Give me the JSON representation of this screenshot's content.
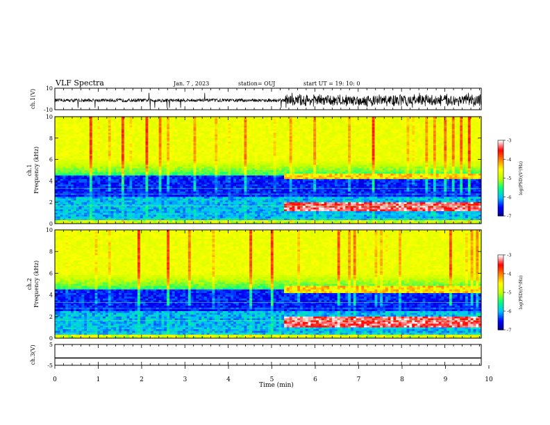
{
  "header": {
    "title": "VLF Spectra",
    "date": "Jan. 7 , 2023",
    "station": "station= OUJ",
    "start": "start UT =  19: 10: 0"
  },
  "chart_data": [
    {
      "type": "line",
      "panel": "ch1-waveform",
      "ylabel": "ch.1(V)",
      "ylim": [
        -10,
        10
      ],
      "yticks": [
        "10",
        "-10"
      ],
      "xlim": [
        0,
        10
      ],
      "series": [
        {
          "segment": "0-5.4 min",
          "amplitude_v": 1.5
        },
        {
          "segment": "5.4-10 min",
          "amplitude_v": 6
        }
      ]
    },
    {
      "type": "heatmap",
      "panel": "ch1-spectrogram",
      "ylabel": "ch.1\nFrequency (kHz)",
      "ylim": [
        0,
        10
      ],
      "yticks": [
        "0",
        "2",
        "4",
        "6",
        "8",
        "10"
      ],
      "xlim": [
        0,
        10
      ],
      "colorbar": {
        "label": "log(PSD)(V²/Hz)",
        "ticks": [
          "-3",
          "-4",
          "-5",
          "-6",
          "-7"
        ],
        "range": [
          -7,
          -3
        ]
      },
      "features": [
        {
          "start_min": 5.4,
          "freq_khz": [
            1.2,
            2.0
          ],
          "level": "high"
        },
        {
          "start_min": 5.4,
          "freq_khz": [
            4.2,
            4.6
          ],
          "level": "medium"
        }
      ]
    },
    {
      "type": "heatmap",
      "panel": "ch2-spectrogram",
      "ylabel": "ch.2\nFrequency (kHz)",
      "ylim": [
        0,
        10
      ],
      "yticks": [
        "0",
        "2",
        "4",
        "6",
        "8",
        "10"
      ],
      "xlim": [
        0,
        10
      ],
      "colorbar": {
        "label": "log(PSD)(V²/Hz)",
        "ticks": [
          "-3",
          "-4",
          "-5",
          "-6",
          "-7"
        ],
        "range": [
          -7,
          -3
        ]
      },
      "features": [
        {
          "start_min": 5.4,
          "freq_khz": [
            1.0,
            2.0
          ],
          "level": "high"
        },
        {
          "start_min": 5.4,
          "freq_khz": [
            4.2,
            4.8
          ],
          "level": "medium"
        }
      ]
    },
    {
      "type": "line",
      "panel": "ch3-waveform",
      "ylabel": "ch.3(V)",
      "ylim": [
        -5,
        5
      ],
      "yticks": [
        "5",
        "-5"
      ],
      "xlim": [
        0,
        10
      ],
      "series": [
        {
          "value_v": -1.5
        }
      ]
    }
  ],
  "xaxis": {
    "label": "Time  (min)",
    "ticks": [
      "0",
      "1",
      "2",
      "3",
      "4",
      "5",
      "6",
      "7",
      "8",
      "9",
      "10"
    ]
  },
  "colors": {
    "colormap": [
      "#000080",
      "#0000ff",
      "#00c0ff",
      "#00ff80",
      "#c0ff00",
      "#ffff00",
      "#ff8000",
      "#ff0000",
      "#ffffff"
    ]
  }
}
